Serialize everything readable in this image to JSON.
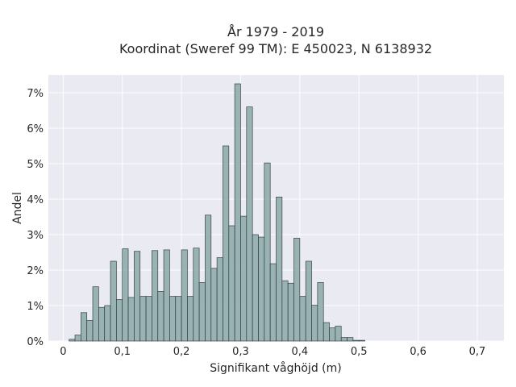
{
  "chart_data": {
    "type": "bar",
    "title_lines": [
      "År 1979 - 2019",
      "Koordinat (Sweref 99 TM): E 450023, N 6138932"
    ],
    "xlabel": "Signifikant våghöjd (m)",
    "ylabel": "Andel",
    "xlim": [
      -0.025,
      0.745
    ],
    "ylim": [
      0,
      7.5
    ],
    "x_ticks": [
      0,
      0.1,
      0.2,
      0.3,
      0.4,
      0.5,
      0.6,
      0.7
    ],
    "x_tick_labels": [
      "0",
      "0,1",
      "0,2",
      "0,3",
      "0,4",
      "0,5",
      "0,6",
      "0,7"
    ],
    "y_ticks": [
      0,
      1,
      2,
      3,
      4,
      5,
      6,
      7
    ],
    "y_tick_labels": [
      "0%",
      "1%",
      "2%",
      "3%",
      "4%",
      "5%",
      "6%",
      "7%"
    ],
    "bin_start": 0.01,
    "bin_width": 0.01,
    "values": [
      0.05,
      0.17,
      0.8,
      0.58,
      1.53,
      0.95,
      1.0,
      2.25,
      1.17,
      2.6,
      1.23,
      2.53,
      1.26,
      1.26,
      2.55,
      1.4,
      2.57,
      1.26,
      1.26,
      2.57,
      1.26,
      2.62,
      1.65,
      3.55,
      2.05,
      2.35,
      5.5,
      3.25,
      7.25,
      3.52,
      6.6,
      3.0,
      2.93,
      5.02,
      2.18,
      4.06,
      1.7,
      1.63,
      2.9,
      1.26,
      2.25,
      1.01,
      1.65,
      0.52,
      0.37,
      0.42,
      0.1,
      0.1,
      0.02,
      0.02
    ],
    "grid": true,
    "colors": {
      "bar_fill": "#95b0b0",
      "bar_edge": "#2f3b3b",
      "plot_background": "#eaeaf2",
      "grid": "#ffffff"
    }
  }
}
